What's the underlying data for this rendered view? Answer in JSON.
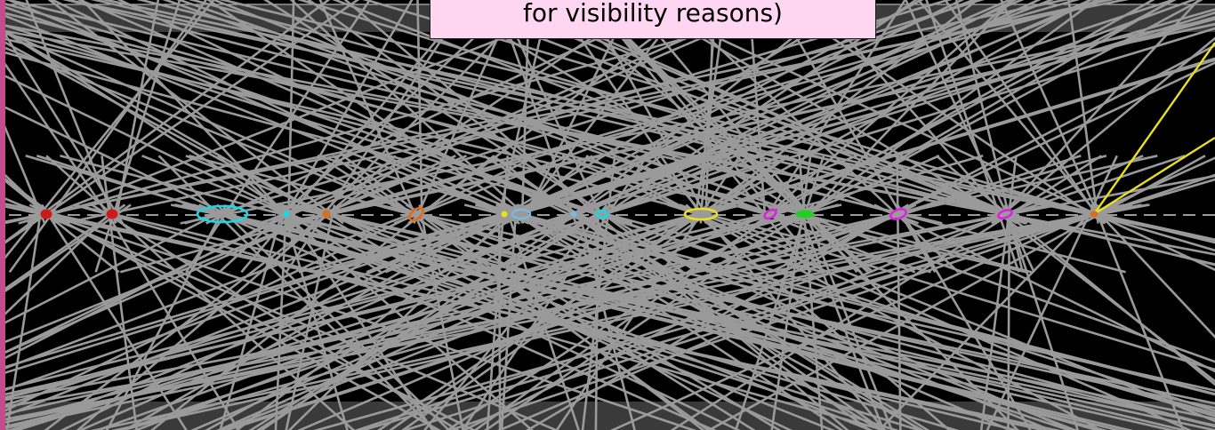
{
  "caption": {
    "text": "for visibility reasons)"
  },
  "colors": {
    "background": "#000000",
    "band": "#3a3a3a",
    "tracks": "#9a9a9a",
    "highlight_tracks": "#e8e020",
    "caption_bg": "#ffd6f2",
    "left_strip": "#c64b8c"
  },
  "vertices": [
    {
      "name": "vertex-red-1",
      "color": "#cc1a1a"
    },
    {
      "name": "vertex-red-2",
      "color": "#cc1a1a"
    },
    {
      "name": "vertex-cyan-1",
      "color": "#18d8e6"
    },
    {
      "name": "vertex-cyan-2",
      "color": "#18d8e6"
    },
    {
      "name": "vertex-orange-1",
      "color": "#e06b18"
    },
    {
      "name": "vertex-orange-2",
      "color": "#e06b18"
    },
    {
      "name": "vertex-yellow-1",
      "color": "#e8e020"
    },
    {
      "name": "vertex-lightblue-1",
      "color": "#7ab8e0"
    },
    {
      "name": "vertex-lightblue-2",
      "color": "#7ab8e0"
    },
    {
      "name": "vertex-cyan-3",
      "color": "#18d8e6"
    },
    {
      "name": "vertex-yellow-2",
      "color": "#e8e020"
    },
    {
      "name": "vertex-magenta-1",
      "color": "#e020e0"
    },
    {
      "name": "vertex-green-1",
      "color": "#20d020"
    },
    {
      "name": "vertex-magenta-2",
      "color": "#e020e0"
    },
    {
      "name": "vertex-magenta-3",
      "color": "#e020e0"
    },
    {
      "name": "vertex-orange-3",
      "color": "#e06b18"
    }
  ]
}
